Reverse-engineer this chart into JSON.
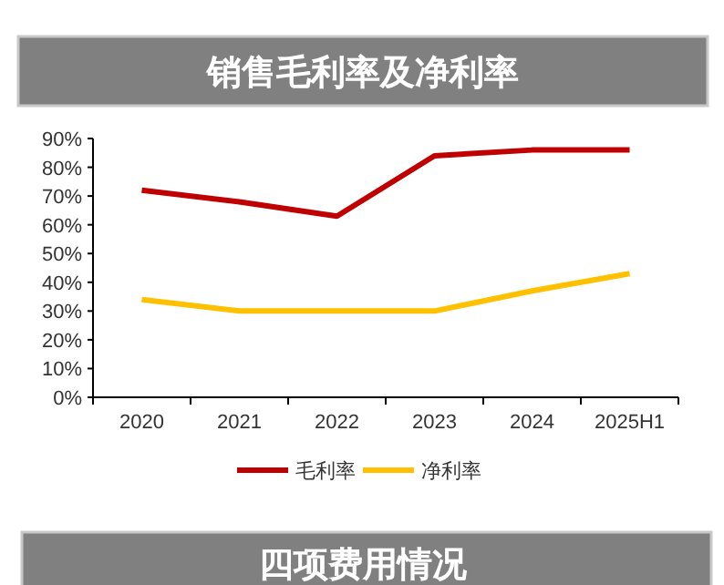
{
  "chart_data": {
    "type": "line",
    "title": "销售毛利率及净利率",
    "categories": [
      "2020",
      "2021",
      "2022",
      "2023",
      "2024",
      "2025H1"
    ],
    "series": [
      {
        "name": "毛利率",
        "color": "#c00000",
        "values": [
          72,
          68,
          63,
          84,
          86,
          86
        ]
      },
      {
        "name": "净利率",
        "color": "#ffc000",
        "values": [
          34,
          30,
          30,
          30,
          37,
          43
        ]
      }
    ],
    "ylim": [
      0,
      90
    ],
    "yticks": [
      {
        "value": 0,
        "label": "0%"
      },
      {
        "value": 10,
        "label": "10%"
      },
      {
        "value": 20,
        "label": "20%"
      },
      {
        "value": 30,
        "label": "30%"
      },
      {
        "value": 40,
        "label": "40%"
      },
      {
        "value": 50,
        "label": "50%"
      },
      {
        "value": 60,
        "label": "60%"
      },
      {
        "value": 70,
        "label": "70%"
      },
      {
        "value": 80,
        "label": "80%"
      },
      {
        "value": 90,
        "label": "90%"
      }
    ],
    "grid": false,
    "legend": "bottom",
    "marker": "none",
    "line_style": "solid",
    "annotations": [
      "四项费用情况"
    ]
  }
}
